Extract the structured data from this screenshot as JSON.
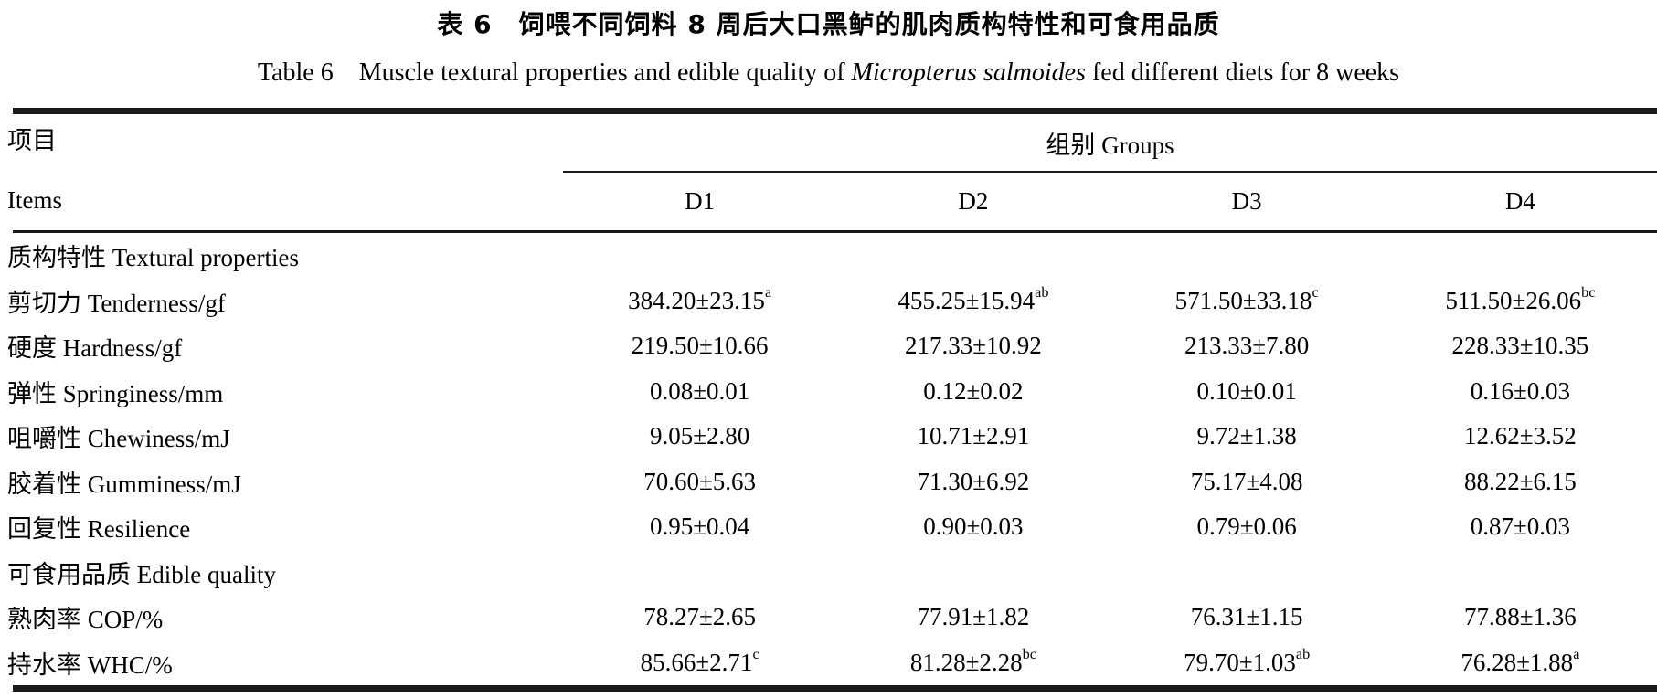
{
  "title": {
    "zh": "表 6　饲喂不同饲料 8 周后大口黑鲈的肌肉质构特性和可食用品质",
    "en_prefix": "Table 6　Muscle textural properties and edible quality of ",
    "en_italic": "Micropterus salmoides",
    "en_suffix": " fed different diets for 8 weeks"
  },
  "table": {
    "items_header": {
      "zh": "项目",
      "en": "Items"
    },
    "groups_header": "组别 Groups",
    "group_columns": [
      "D1",
      "D2",
      "D3",
      "D4"
    ],
    "rows": [
      {
        "type": "section",
        "label": "质构特性 Textural properties"
      },
      {
        "type": "data",
        "label": "剪切力 Tenderness/gf",
        "cells": [
          {
            "value": "384.20±23.15",
            "sup": "a"
          },
          {
            "value": "455.25±15.94",
            "sup": "ab"
          },
          {
            "value": "571.50±33.18",
            "sup": "c"
          },
          {
            "value": "511.50±26.06",
            "sup": "bc"
          }
        ]
      },
      {
        "type": "data",
        "label": "硬度 Hardness/gf",
        "cells": [
          {
            "value": "219.50±10.66",
            "sup": ""
          },
          {
            "value": "217.33±10.92",
            "sup": ""
          },
          {
            "value": "213.33±7.80",
            "sup": ""
          },
          {
            "value": "228.33±10.35",
            "sup": ""
          }
        ]
      },
      {
        "type": "data",
        "label": "弹性 Springiness/mm",
        "cells": [
          {
            "value": "0.08±0.01",
            "sup": ""
          },
          {
            "value": "0.12±0.02",
            "sup": ""
          },
          {
            "value": "0.10±0.01",
            "sup": ""
          },
          {
            "value": "0.16±0.03",
            "sup": ""
          }
        ]
      },
      {
        "type": "data",
        "label": "咀嚼性 Chewiness/mJ",
        "cells": [
          {
            "value": "9.05±2.80",
            "sup": ""
          },
          {
            "value": "10.71±2.91",
            "sup": ""
          },
          {
            "value": "9.72±1.38",
            "sup": ""
          },
          {
            "value": "12.62±3.52",
            "sup": ""
          }
        ]
      },
      {
        "type": "data",
        "label": "胶着性 Gumminess/mJ",
        "cells": [
          {
            "value": "70.60±5.63",
            "sup": ""
          },
          {
            "value": "71.30±6.92",
            "sup": ""
          },
          {
            "value": "75.17±4.08",
            "sup": ""
          },
          {
            "value": "88.22±6.15",
            "sup": ""
          }
        ]
      },
      {
        "type": "data",
        "label": "回复性 Resilience",
        "cells": [
          {
            "value": "0.95±0.04",
            "sup": ""
          },
          {
            "value": "0.90±0.03",
            "sup": ""
          },
          {
            "value": "0.79±0.06",
            "sup": ""
          },
          {
            "value": "0.87±0.03",
            "sup": ""
          }
        ]
      },
      {
        "type": "section",
        "label": "可食用品质 Edible quality"
      },
      {
        "type": "data",
        "label": "熟肉率 COP/%",
        "cells": [
          {
            "value": "78.27±2.65",
            "sup": ""
          },
          {
            "value": "77.91±1.82",
            "sup": ""
          },
          {
            "value": "76.31±1.15",
            "sup": ""
          },
          {
            "value": "77.88±1.36",
            "sup": ""
          }
        ]
      },
      {
        "type": "data",
        "label": "持水率 WHC/%",
        "cells": [
          {
            "value": "85.66±2.71",
            "sup": "c"
          },
          {
            "value": "81.28±2.28",
            "sup": "bc"
          },
          {
            "value": "79.70±1.03",
            "sup": "ab"
          },
          {
            "value": "76.28±1.88",
            "sup": "a"
          }
        ]
      }
    ]
  }
}
